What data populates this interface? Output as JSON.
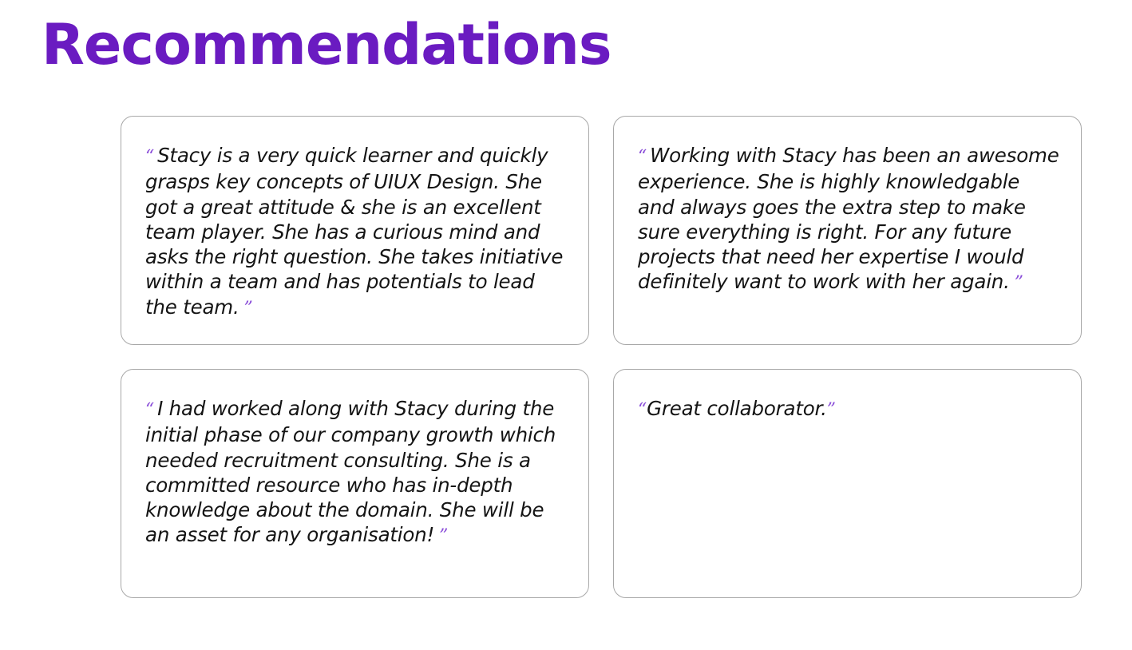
{
  "page": {
    "title": "Recommendations",
    "accent_color": "#6a1bc1",
    "quote_mark_color": "#8b4fd9"
  },
  "quote_marks": {
    "open": "“",
    "close": "”"
  },
  "recommendations": [
    {
      "text": "Stacy is a very quick learner and quickly grasps key concepts of UIUX Design. She got a great attitude & she is an excellent team player. She has a curious mind and asks the right question. She takes initiative within a team and has potentials to lead the team."
    },
    {
      "text": "Working with Stacy has been an awesome experience. She is highly knowledgable and always goes the extra step to make sure everything is right. For any future projects that need her expertise I would definitely want to work with her again."
    },
    {
      "text": "I had worked along with Stacy during the initial phase of our company growth which needed recruitment consulting. She is a committed resource who has in-depth knowledge about the domain. She will be an asset for any organisation!"
    },
    {
      "text": "Great collaborator."
    }
  ]
}
